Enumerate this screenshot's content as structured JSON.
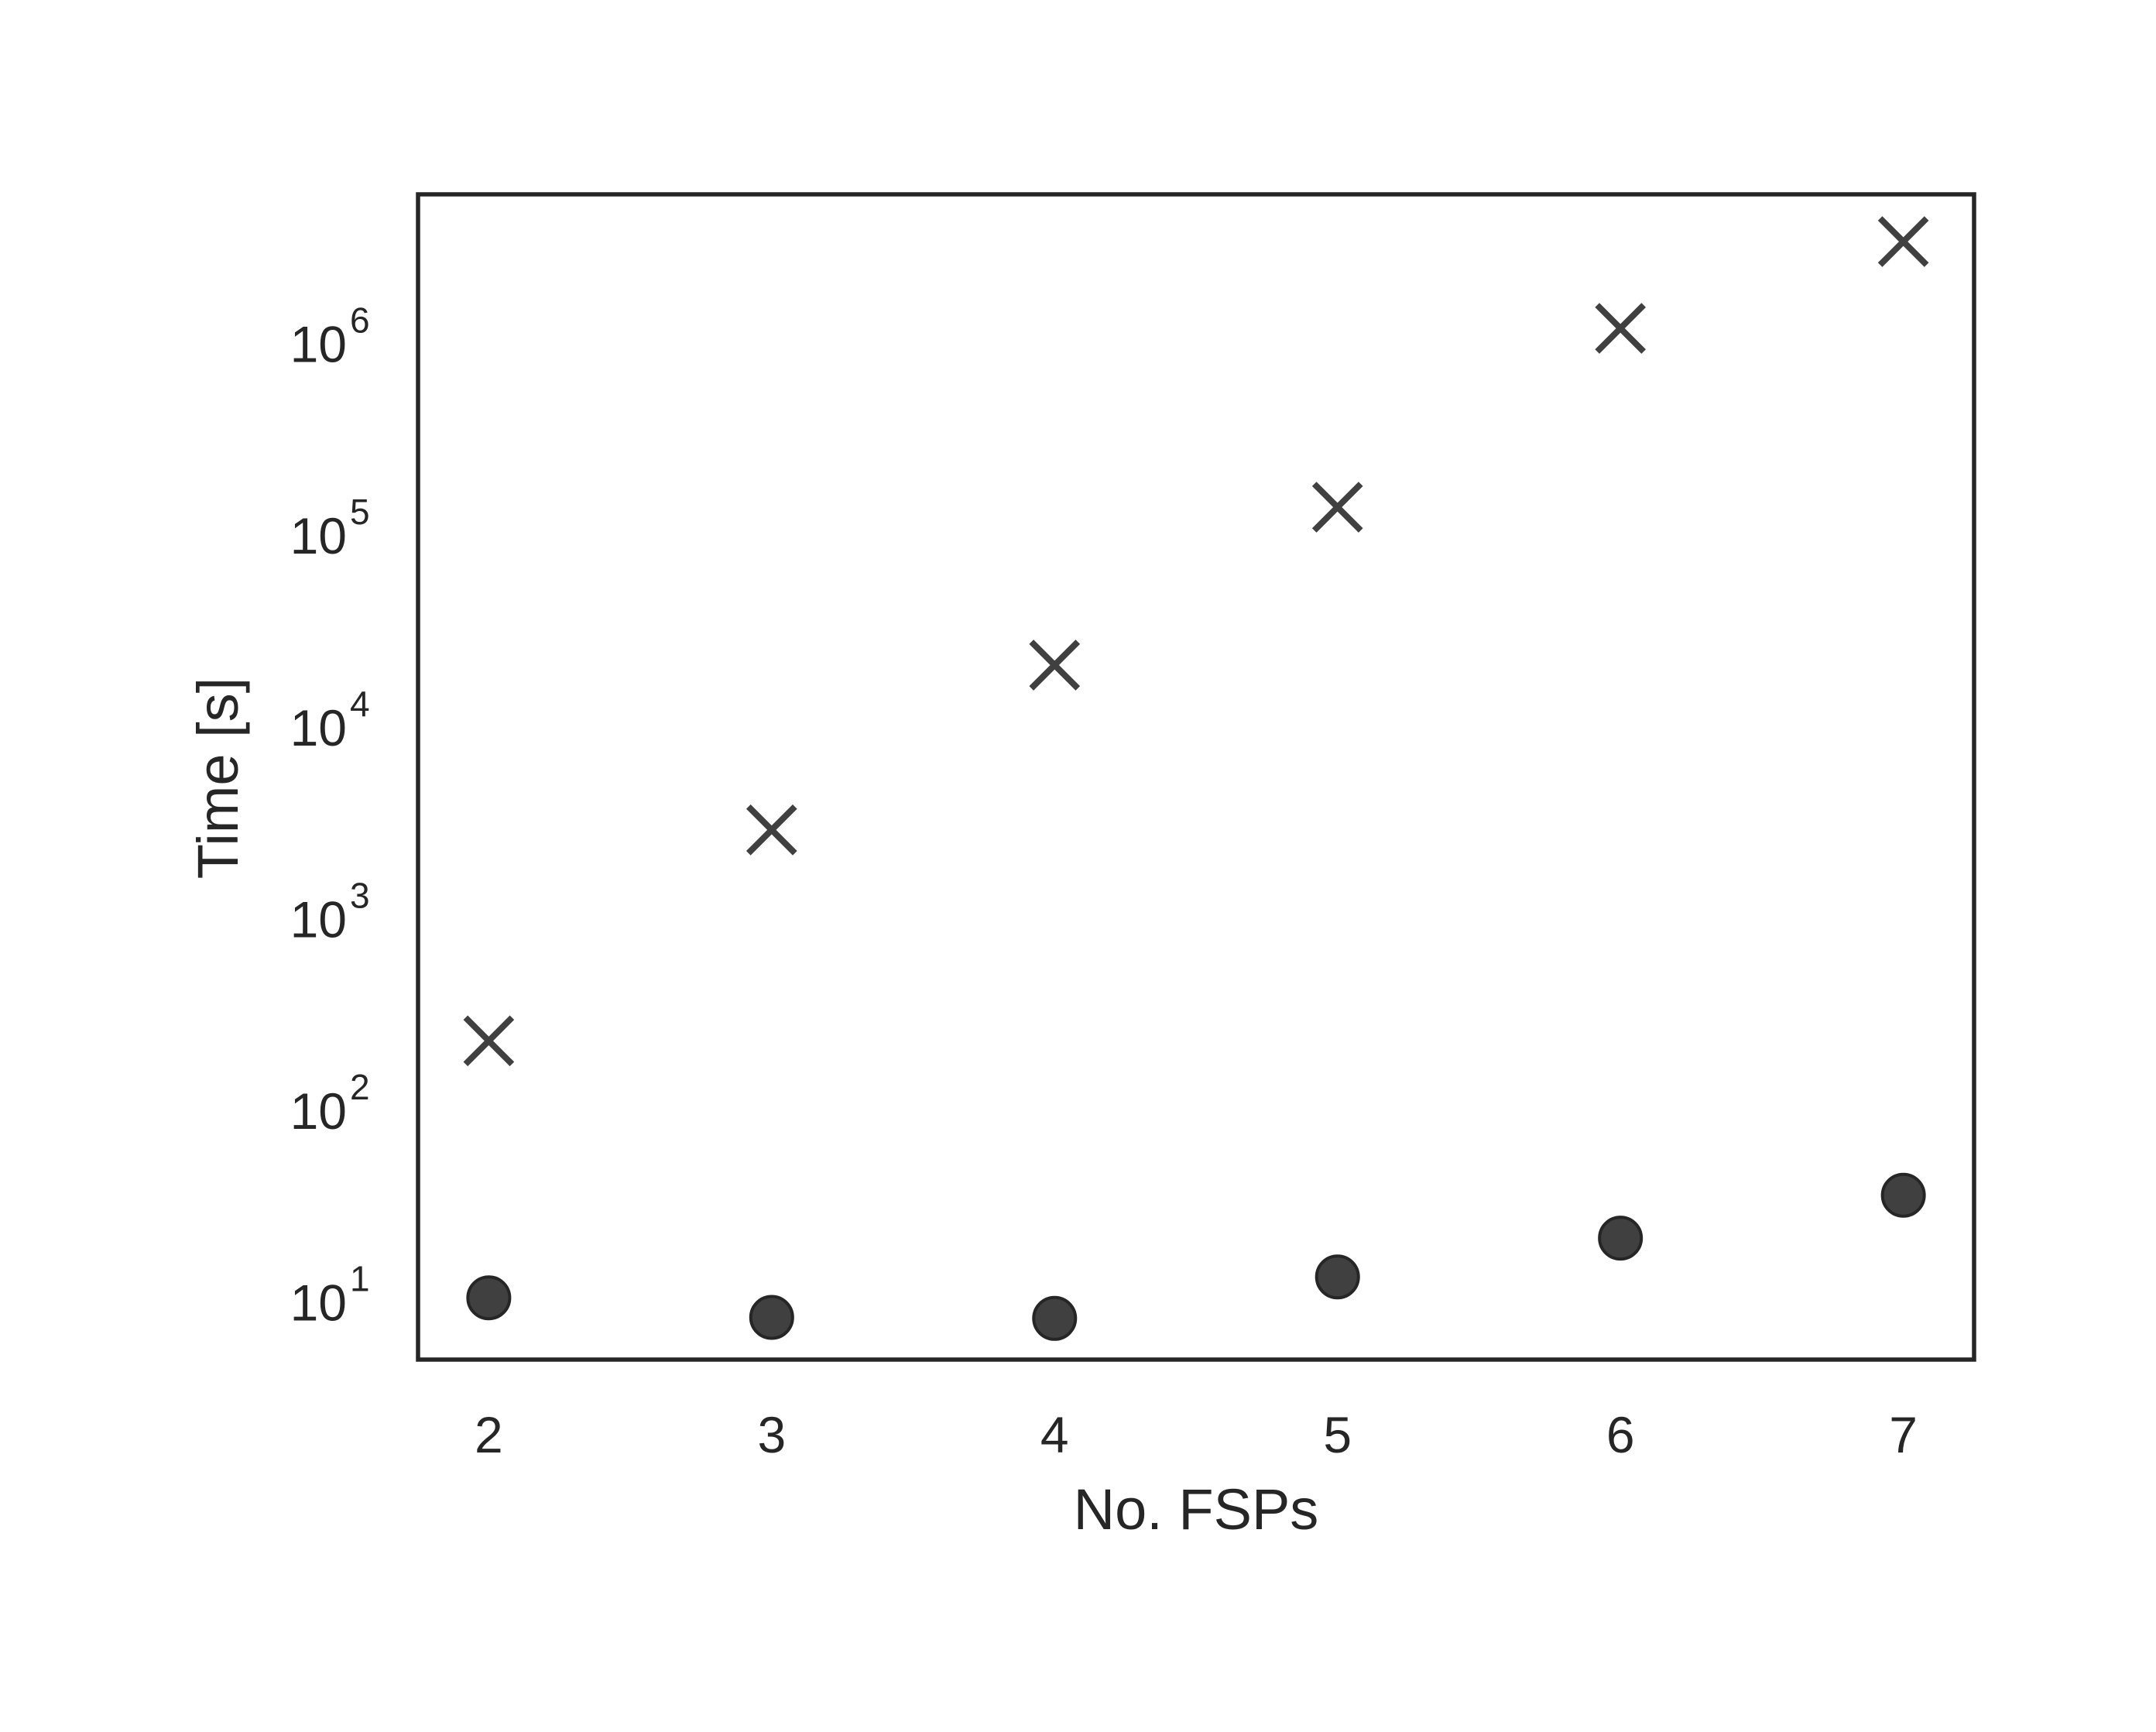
{
  "chart_data": {
    "type": "scatter",
    "title": "",
    "xlabel": "No. FSPs",
    "ylabel": "Time [s]",
    "x_ticks": [
      2,
      3,
      4,
      5,
      6,
      7
    ],
    "xlim": [
      1.75,
      7.25
    ],
    "y_scale": "log",
    "y_ticks": [
      {
        "base": "10",
        "exp": "1",
        "value": 10
      },
      {
        "base": "10",
        "exp": "2",
        "value": 100
      },
      {
        "base": "10",
        "exp": "3",
        "value": 1000
      },
      {
        "base": "10",
        "exp": "4",
        "value": 10000
      },
      {
        "base": "10",
        "exp": "5",
        "value": 100000
      },
      {
        "base": "10",
        "exp": "6",
        "value": 1000000
      }
    ],
    "ylim": [
      5,
      6000000
    ],
    "grid": false,
    "legend": "none",
    "series": [
      {
        "marker": "x",
        "color": "#404040",
        "x": [
          2,
          3,
          4,
          5,
          6,
          7
        ],
        "y": [
          230,
          2900,
          21000,
          140000,
          1200000,
          3400000
        ]
      },
      {
        "marker": "circle",
        "color": "#404040",
        "x": [
          2,
          3,
          4,
          5,
          6,
          7
        ],
        "y": [
          10.5,
          8.3,
          8.2,
          13.5,
          21.5,
          36
        ]
      }
    ]
  }
}
